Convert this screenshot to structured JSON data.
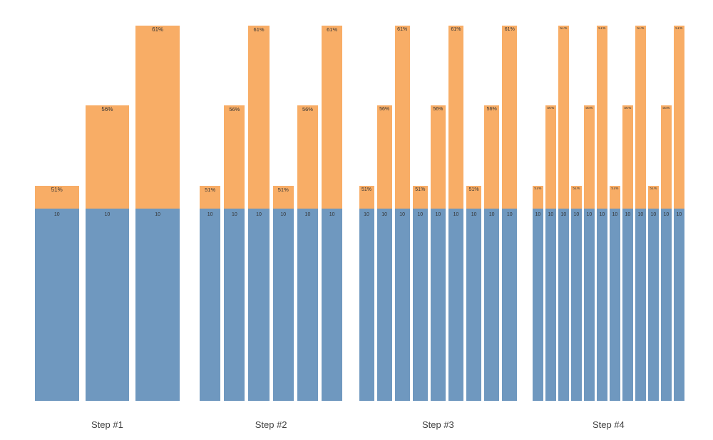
{
  "page": {
    "background": "#ffffff"
  },
  "chart_data": {
    "type": "bar",
    "subtype": "grouped-stacked",
    "title": "",
    "xlabel": "",
    "ylabel": "",
    "grid": false,
    "legend": "none",
    "axes_visible": false,
    "colors": {
      "base_segment": "#6f98bf",
      "top_segment": "#f8ad66",
      "bar_label_text": "#333333",
      "group_label_text": "#404040"
    },
    "base_value_per_bar": 10,
    "groups": [
      {
        "label": "Step #1",
        "bars": [
          {
            "pct": 51,
            "pct_label": "51%",
            "base": 10,
            "base_label": "10"
          },
          {
            "pct": 56,
            "pct_label": "56%",
            "base": 10,
            "base_label": "10"
          },
          {
            "pct": 61,
            "pct_label": "61%",
            "base": 10,
            "base_label": "10"
          }
        ]
      },
      {
        "label": "Step #2",
        "bars": [
          {
            "pct": 51,
            "pct_label": "51%",
            "base": 10,
            "base_label": "10"
          },
          {
            "pct": 56,
            "pct_label": "56%",
            "base": 10,
            "base_label": "10"
          },
          {
            "pct": 61,
            "pct_label": "61%",
            "base": 10,
            "base_label": "10"
          },
          {
            "pct": 51,
            "pct_label": "51%",
            "base": 10,
            "base_label": "10"
          },
          {
            "pct": 56,
            "pct_label": "56%",
            "base": 10,
            "base_label": "10"
          },
          {
            "pct": 61,
            "pct_label": "61%",
            "base": 10,
            "base_label": "10"
          }
        ]
      },
      {
        "label": "Step #3",
        "bars": [
          {
            "pct": 51,
            "pct_label": "51%",
            "base": 10,
            "base_label": "10"
          },
          {
            "pct": 56,
            "pct_label": "56%",
            "base": 10,
            "base_label": "10"
          },
          {
            "pct": 61,
            "pct_label": "61%",
            "base": 10,
            "base_label": "10"
          },
          {
            "pct": 51,
            "pct_label": "51%",
            "base": 10,
            "base_label": "10"
          },
          {
            "pct": 56,
            "pct_label": "56%",
            "base": 10,
            "base_label": "10"
          },
          {
            "pct": 61,
            "pct_label": "61%",
            "base": 10,
            "base_label": "10"
          },
          {
            "pct": 51,
            "pct_label": "51%",
            "base": 10,
            "base_label": "10"
          },
          {
            "pct": 56,
            "pct_label": "56%",
            "base": 10,
            "base_label": "10"
          },
          {
            "pct": 61,
            "pct_label": "61%",
            "base": 10,
            "base_label": "10"
          }
        ]
      },
      {
        "label": "Step #4",
        "bars": [
          {
            "pct": 51,
            "pct_label": "51%",
            "base": 10,
            "base_label": "10"
          },
          {
            "pct": 56,
            "pct_label": "56%",
            "base": 10,
            "base_label": "10"
          },
          {
            "pct": 61,
            "pct_label": "61%",
            "base": 10,
            "base_label": "10"
          },
          {
            "pct": 51,
            "pct_label": "51%",
            "base": 10,
            "base_label": "10"
          },
          {
            "pct": 56,
            "pct_label": "56%",
            "base": 10,
            "base_label": "10"
          },
          {
            "pct": 61,
            "pct_label": "61%",
            "base": 10,
            "base_label": "10"
          },
          {
            "pct": 51,
            "pct_label": "51%",
            "base": 10,
            "base_label": "10"
          },
          {
            "pct": 56,
            "pct_label": "56%",
            "base": 10,
            "base_label": "10"
          },
          {
            "pct": 61,
            "pct_label": "61%",
            "base": 10,
            "base_label": "10"
          },
          {
            "pct": 51,
            "pct_label": "51%",
            "base": 10,
            "base_label": "10"
          },
          {
            "pct": 56,
            "pct_label": "56%",
            "base": 10,
            "base_label": "10"
          },
          {
            "pct": 61,
            "pct_label": "61%",
            "base": 10,
            "base_label": "10"
          }
        ]
      }
    ]
  }
}
